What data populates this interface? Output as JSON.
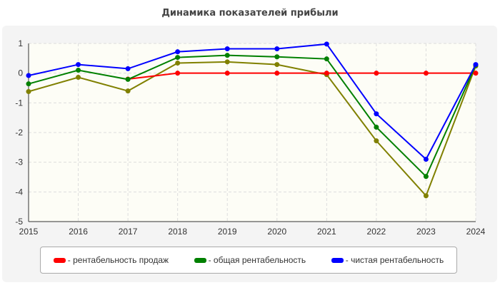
{
  "chart_data": {
    "type": "line",
    "title": "Динамика показателей прибыли",
    "x": [
      "2015",
      "2016",
      "2017",
      "2018",
      "2019",
      "2020",
      "2021",
      "2022",
      "2023",
      "2024"
    ],
    "ylim": [
      -5,
      1
    ],
    "yticks": [
      "1",
      "0",
      "-1",
      "-2",
      "-3",
      "-4",
      "-5"
    ],
    "grid": true,
    "legend_position": "bottom",
    "series": [
      {
        "name": "- рентабельность продаж",
        "color": "#ff0000",
        "values": [
          null,
          null,
          -0.2,
          0,
          0,
          0,
          0,
          0,
          0,
          0
        ]
      },
      {
        "name": "- общая рентабельность",
        "color": "#008000",
        "values": [
          -0.36,
          0.1,
          -0.21,
          0.53,
          0.6,
          0.55,
          0.48,
          -1.82,
          -3.48,
          0.27
        ]
      },
      {
        "name": "- чистая рентабельность",
        "color": "#0000ff",
        "values": [
          -0.08,
          0.29,
          0.15,
          0.72,
          0.82,
          0.82,
          0.98,
          -1.37,
          -2.9,
          0.29
        ]
      },
      {
        "color": "#808000",
        "values": [
          -0.62,
          -0.14,
          -0.6,
          0.34,
          0.38,
          0.29,
          -0.05,
          -2.28,
          -4.13,
          0.24
        ]
      }
    ]
  }
}
